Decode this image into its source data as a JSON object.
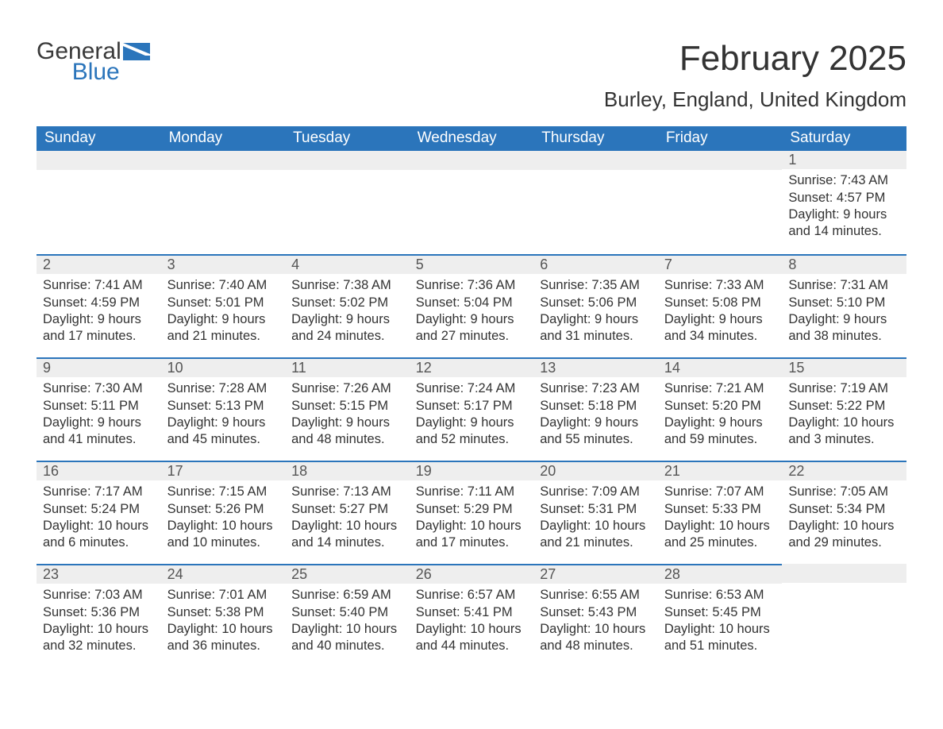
{
  "logo": {
    "word1": "General",
    "word2": "Blue",
    "brand_color": "#2b75bb"
  },
  "title": "February 2025",
  "location": "Burley, England, United Kingdom",
  "colors": {
    "header_bg": "#2b75bb",
    "header_text": "#ffffff",
    "strip_bg": "#eeeeee",
    "strip_border": "#2b75bb",
    "body_text": "#333333",
    "day_num_text": "#555555",
    "page_bg": "#ffffff"
  },
  "weekdays": [
    "Sunday",
    "Monday",
    "Tuesday",
    "Wednesday",
    "Thursday",
    "Friday",
    "Saturday"
  ],
  "weeks": [
    [
      null,
      null,
      null,
      null,
      null,
      null,
      {
        "n": "1",
        "sunrise": "Sunrise: 7:43 AM",
        "sunset": "Sunset: 4:57 PM",
        "daylight1": "Daylight: 9 hours",
        "daylight2": "and 14 minutes."
      }
    ],
    [
      {
        "n": "2",
        "sunrise": "Sunrise: 7:41 AM",
        "sunset": "Sunset: 4:59 PM",
        "daylight1": "Daylight: 9 hours",
        "daylight2": "and 17 minutes."
      },
      {
        "n": "3",
        "sunrise": "Sunrise: 7:40 AM",
        "sunset": "Sunset: 5:01 PM",
        "daylight1": "Daylight: 9 hours",
        "daylight2": "and 21 minutes."
      },
      {
        "n": "4",
        "sunrise": "Sunrise: 7:38 AM",
        "sunset": "Sunset: 5:02 PM",
        "daylight1": "Daylight: 9 hours",
        "daylight2": "and 24 minutes."
      },
      {
        "n": "5",
        "sunrise": "Sunrise: 7:36 AM",
        "sunset": "Sunset: 5:04 PM",
        "daylight1": "Daylight: 9 hours",
        "daylight2": "and 27 minutes."
      },
      {
        "n": "6",
        "sunrise": "Sunrise: 7:35 AM",
        "sunset": "Sunset: 5:06 PM",
        "daylight1": "Daylight: 9 hours",
        "daylight2": "and 31 minutes."
      },
      {
        "n": "7",
        "sunrise": "Sunrise: 7:33 AM",
        "sunset": "Sunset: 5:08 PM",
        "daylight1": "Daylight: 9 hours",
        "daylight2": "and 34 minutes."
      },
      {
        "n": "8",
        "sunrise": "Sunrise: 7:31 AM",
        "sunset": "Sunset: 5:10 PM",
        "daylight1": "Daylight: 9 hours",
        "daylight2": "and 38 minutes."
      }
    ],
    [
      {
        "n": "9",
        "sunrise": "Sunrise: 7:30 AM",
        "sunset": "Sunset: 5:11 PM",
        "daylight1": "Daylight: 9 hours",
        "daylight2": "and 41 minutes."
      },
      {
        "n": "10",
        "sunrise": "Sunrise: 7:28 AM",
        "sunset": "Sunset: 5:13 PM",
        "daylight1": "Daylight: 9 hours",
        "daylight2": "and 45 minutes."
      },
      {
        "n": "11",
        "sunrise": "Sunrise: 7:26 AM",
        "sunset": "Sunset: 5:15 PM",
        "daylight1": "Daylight: 9 hours",
        "daylight2": "and 48 minutes."
      },
      {
        "n": "12",
        "sunrise": "Sunrise: 7:24 AM",
        "sunset": "Sunset: 5:17 PM",
        "daylight1": "Daylight: 9 hours",
        "daylight2": "and 52 minutes."
      },
      {
        "n": "13",
        "sunrise": "Sunrise: 7:23 AM",
        "sunset": "Sunset: 5:18 PM",
        "daylight1": "Daylight: 9 hours",
        "daylight2": "and 55 minutes."
      },
      {
        "n": "14",
        "sunrise": "Sunrise: 7:21 AM",
        "sunset": "Sunset: 5:20 PM",
        "daylight1": "Daylight: 9 hours",
        "daylight2": "and 59 minutes."
      },
      {
        "n": "15",
        "sunrise": "Sunrise: 7:19 AM",
        "sunset": "Sunset: 5:22 PM",
        "daylight1": "Daylight: 10 hours",
        "daylight2": "and 3 minutes."
      }
    ],
    [
      {
        "n": "16",
        "sunrise": "Sunrise: 7:17 AM",
        "sunset": "Sunset: 5:24 PM",
        "daylight1": "Daylight: 10 hours",
        "daylight2": "and 6 minutes."
      },
      {
        "n": "17",
        "sunrise": "Sunrise: 7:15 AM",
        "sunset": "Sunset: 5:26 PM",
        "daylight1": "Daylight: 10 hours",
        "daylight2": "and 10 minutes."
      },
      {
        "n": "18",
        "sunrise": "Sunrise: 7:13 AM",
        "sunset": "Sunset: 5:27 PM",
        "daylight1": "Daylight: 10 hours",
        "daylight2": "and 14 minutes."
      },
      {
        "n": "19",
        "sunrise": "Sunrise: 7:11 AM",
        "sunset": "Sunset: 5:29 PM",
        "daylight1": "Daylight: 10 hours",
        "daylight2": "and 17 minutes."
      },
      {
        "n": "20",
        "sunrise": "Sunrise: 7:09 AM",
        "sunset": "Sunset: 5:31 PM",
        "daylight1": "Daylight: 10 hours",
        "daylight2": "and 21 minutes."
      },
      {
        "n": "21",
        "sunrise": "Sunrise: 7:07 AM",
        "sunset": "Sunset: 5:33 PM",
        "daylight1": "Daylight: 10 hours",
        "daylight2": "and 25 minutes."
      },
      {
        "n": "22",
        "sunrise": "Sunrise: 7:05 AM",
        "sunset": "Sunset: 5:34 PM",
        "daylight1": "Daylight: 10 hours",
        "daylight2": "and 29 minutes."
      }
    ],
    [
      {
        "n": "23",
        "sunrise": "Sunrise: 7:03 AM",
        "sunset": "Sunset: 5:36 PM",
        "daylight1": "Daylight: 10 hours",
        "daylight2": "and 32 minutes."
      },
      {
        "n": "24",
        "sunrise": "Sunrise: 7:01 AM",
        "sunset": "Sunset: 5:38 PM",
        "daylight1": "Daylight: 10 hours",
        "daylight2": "and 36 minutes."
      },
      {
        "n": "25",
        "sunrise": "Sunrise: 6:59 AM",
        "sunset": "Sunset: 5:40 PM",
        "daylight1": "Daylight: 10 hours",
        "daylight2": "and 40 minutes."
      },
      {
        "n": "26",
        "sunrise": "Sunrise: 6:57 AM",
        "sunset": "Sunset: 5:41 PM",
        "daylight1": "Daylight: 10 hours",
        "daylight2": "and 44 minutes."
      },
      {
        "n": "27",
        "sunrise": "Sunrise: 6:55 AM",
        "sunset": "Sunset: 5:43 PM",
        "daylight1": "Daylight: 10 hours",
        "daylight2": "and 48 minutes."
      },
      {
        "n": "28",
        "sunrise": "Sunrise: 6:53 AM",
        "sunset": "Sunset: 5:45 PM",
        "daylight1": "Daylight: 10 hours",
        "daylight2": "and 51 minutes."
      },
      null
    ]
  ]
}
